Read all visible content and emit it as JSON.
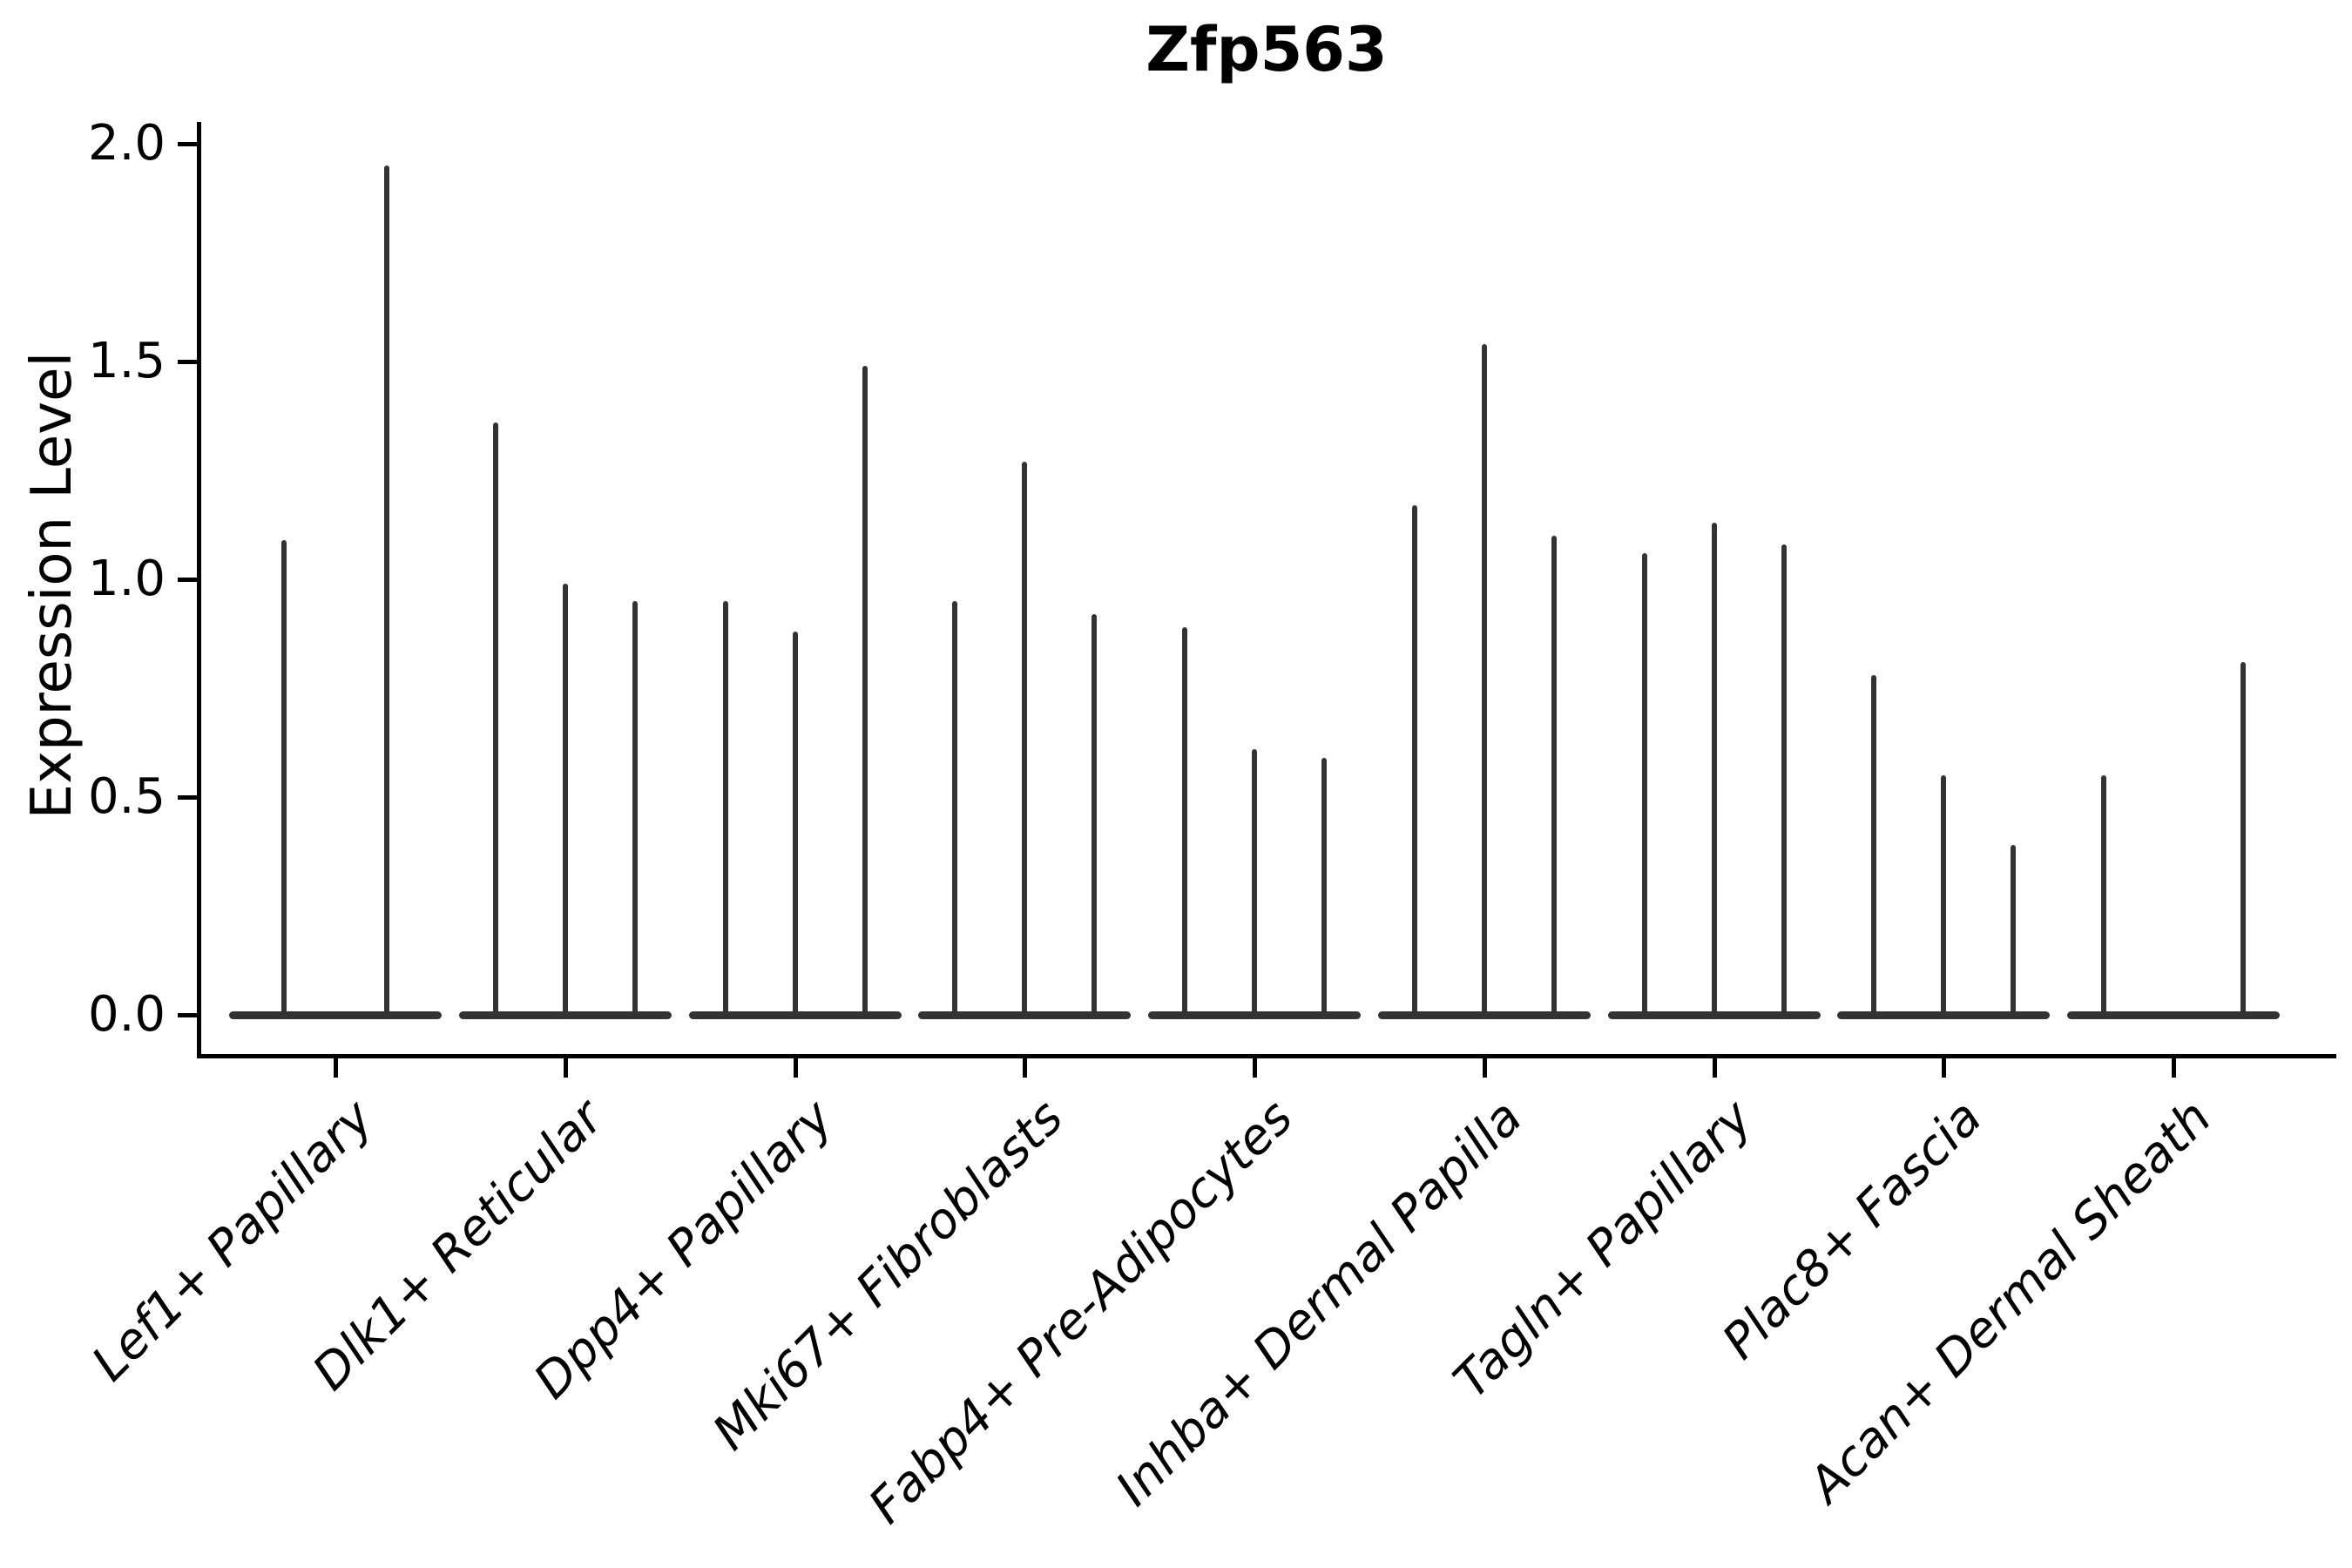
{
  "colors": {
    "ink": "#333333",
    "axis": "#000000",
    "background": "#ffffff"
  },
  "chart_data": {
    "type": "violin",
    "title": "Zfp563",
    "xlabel": "",
    "ylabel": "Expression Level",
    "ylim": [
      -0.09,
      2.05
    ],
    "grid": false,
    "legend": "none",
    "ytick_labels": [
      "0.0",
      "0.5",
      "1.0",
      "1.5",
      "2.0"
    ],
    "yticks": [
      0.0,
      0.5,
      1.0,
      1.5,
      2.0
    ],
    "categories": [
      "Lef1+ Papillary",
      "Dlk1+ Reticular",
      "Dpp4+ Papillary",
      "Mki67+ Fibroblasts",
      "Fabp4+ Pre-Adipocytes",
      "Inhba+ Dermal Papilla",
      "Tagln+ Papillary",
      "Plac8+ Fascia",
      "Acan+ Dermal Sheath"
    ],
    "series": [
      {
        "category": "Lef1+ Papillary",
        "violin_max_values": [
          1.09,
          1.95
        ]
      },
      {
        "category": "Dlk1+ Reticular",
        "violin_max_values": [
          1.36,
          0.99,
          0.95
        ]
      },
      {
        "category": "Dpp4+ Papillary",
        "violin_max_values": [
          0.95,
          0.88,
          1.49
        ]
      },
      {
        "category": "Mki67+ Fibroblasts",
        "violin_max_values": [
          0.95,
          1.27,
          0.92
        ]
      },
      {
        "category": "Fabp4+ Pre-Adipocytes",
        "violin_max_values": [
          0.89,
          0.61,
          0.59
        ]
      },
      {
        "category": "Inhba+ Dermal Papilla",
        "violin_max_values": [
          1.17,
          1.54,
          1.1
        ]
      },
      {
        "category": "Tagln+ Papillary",
        "violin_max_values": [
          1.06,
          1.13,
          1.08
        ]
      },
      {
        "category": "Plac8+ Fascia",
        "violin_max_values": [
          0.78,
          0.55,
          0.39
        ]
      },
      {
        "category": "Acan+ Dermal Sheath",
        "violin_max_values": [
          0.55,
          0.0,
          0.81
        ]
      }
    ],
    "style_note": "Zero-inflated expression violins: each violin renders as a wide flat base at 0 plus a thin vertical density spike up to its max value; violins with all-zero values show only the base."
  }
}
